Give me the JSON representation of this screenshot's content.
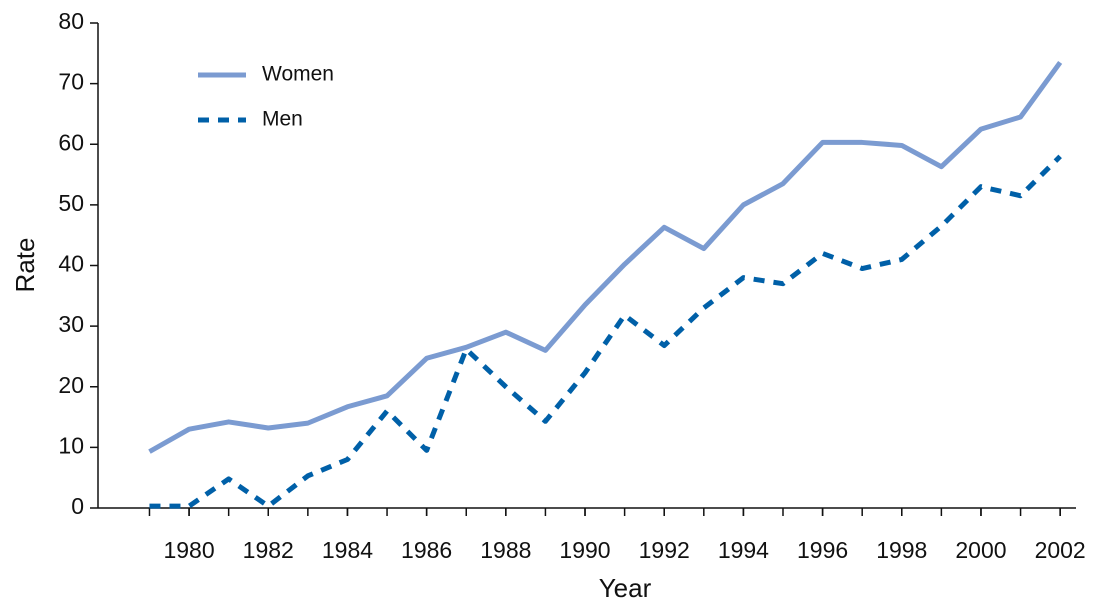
{
  "chart_data": {
    "type": "line",
    "x_label": "Year",
    "y_label": "Rate",
    "x": [
      1979,
      1980,
      1981,
      1982,
      1983,
      1984,
      1985,
      1986,
      1987,
      1988,
      1989,
      1990,
      1991,
      1992,
      1993,
      1994,
      1995,
      1996,
      1997,
      1998,
      1999,
      2000,
      2001,
      2002
    ],
    "series": [
      {
        "name": "Women",
        "color": "#7b9bd1",
        "dash": "solid",
        "values": [
          9.3,
          13,
          14.2,
          13.2,
          14,
          16.7,
          18.5,
          24.7,
          26.5,
          29,
          26,
          33.5,
          40.2,
          46.3,
          42.8,
          50,
          53.5,
          60.3,
          60.3,
          59.8,
          56.3,
          62.5,
          64.5,
          73.5
        ]
      },
      {
        "name": "Men",
        "color": "#0060a8",
        "dash": "dashed",
        "values": [
          0.3,
          0.3,
          4.8,
          0.3,
          5.3,
          8,
          16,
          9.5,
          26.2,
          20,
          14.3,
          22.3,
          31.8,
          26.8,
          33,
          38,
          37,
          42,
          39.5,
          41,
          46.5,
          53,
          51.5,
          58
        ]
      }
    ],
    "xlim": [
      1977.7,
      2002.4
    ],
    "xticks": [
      1980,
      1982,
      1984,
      1986,
      1988,
      1990,
      1992,
      1994,
      1996,
      1998,
      2000,
      2002
    ],
    "ylim": [
      0,
      80
    ],
    "yticks": [
      0,
      10,
      20,
      30,
      40,
      50,
      60,
      70,
      80
    ],
    "legend": "upper left"
  }
}
